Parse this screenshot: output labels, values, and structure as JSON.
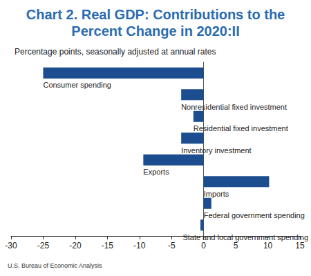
{
  "chart_data": {
    "type": "bar",
    "orientation": "horizontal",
    "title": "Chart 2. Real GDP: Contributions to the\nPercent Change in 2020:II",
    "subtitle": "Percentage points, seasonally adjusted at annual rates",
    "source": "U.S. Bureau of Economic Analysis",
    "categories": [
      "Consumer spending",
      "Nonresidential fixed investment",
      "Residential fixed investment",
      "Inventory investment",
      "Exports",
      "Imports",
      "Federal government spending",
      "State and local government spending"
    ],
    "values": [
      -25.0,
      -3.5,
      -1.6,
      -3.5,
      -9.4,
      10.2,
      1.2,
      -0.5
    ],
    "color": "#1c4e8f",
    "xlim": [
      -30,
      15
    ],
    "xticks": [
      -30,
      -25,
      -20,
      -15,
      -10,
      -5,
      0,
      5,
      10,
      15
    ],
    "grid": false,
    "tick_labels": "x"
  }
}
